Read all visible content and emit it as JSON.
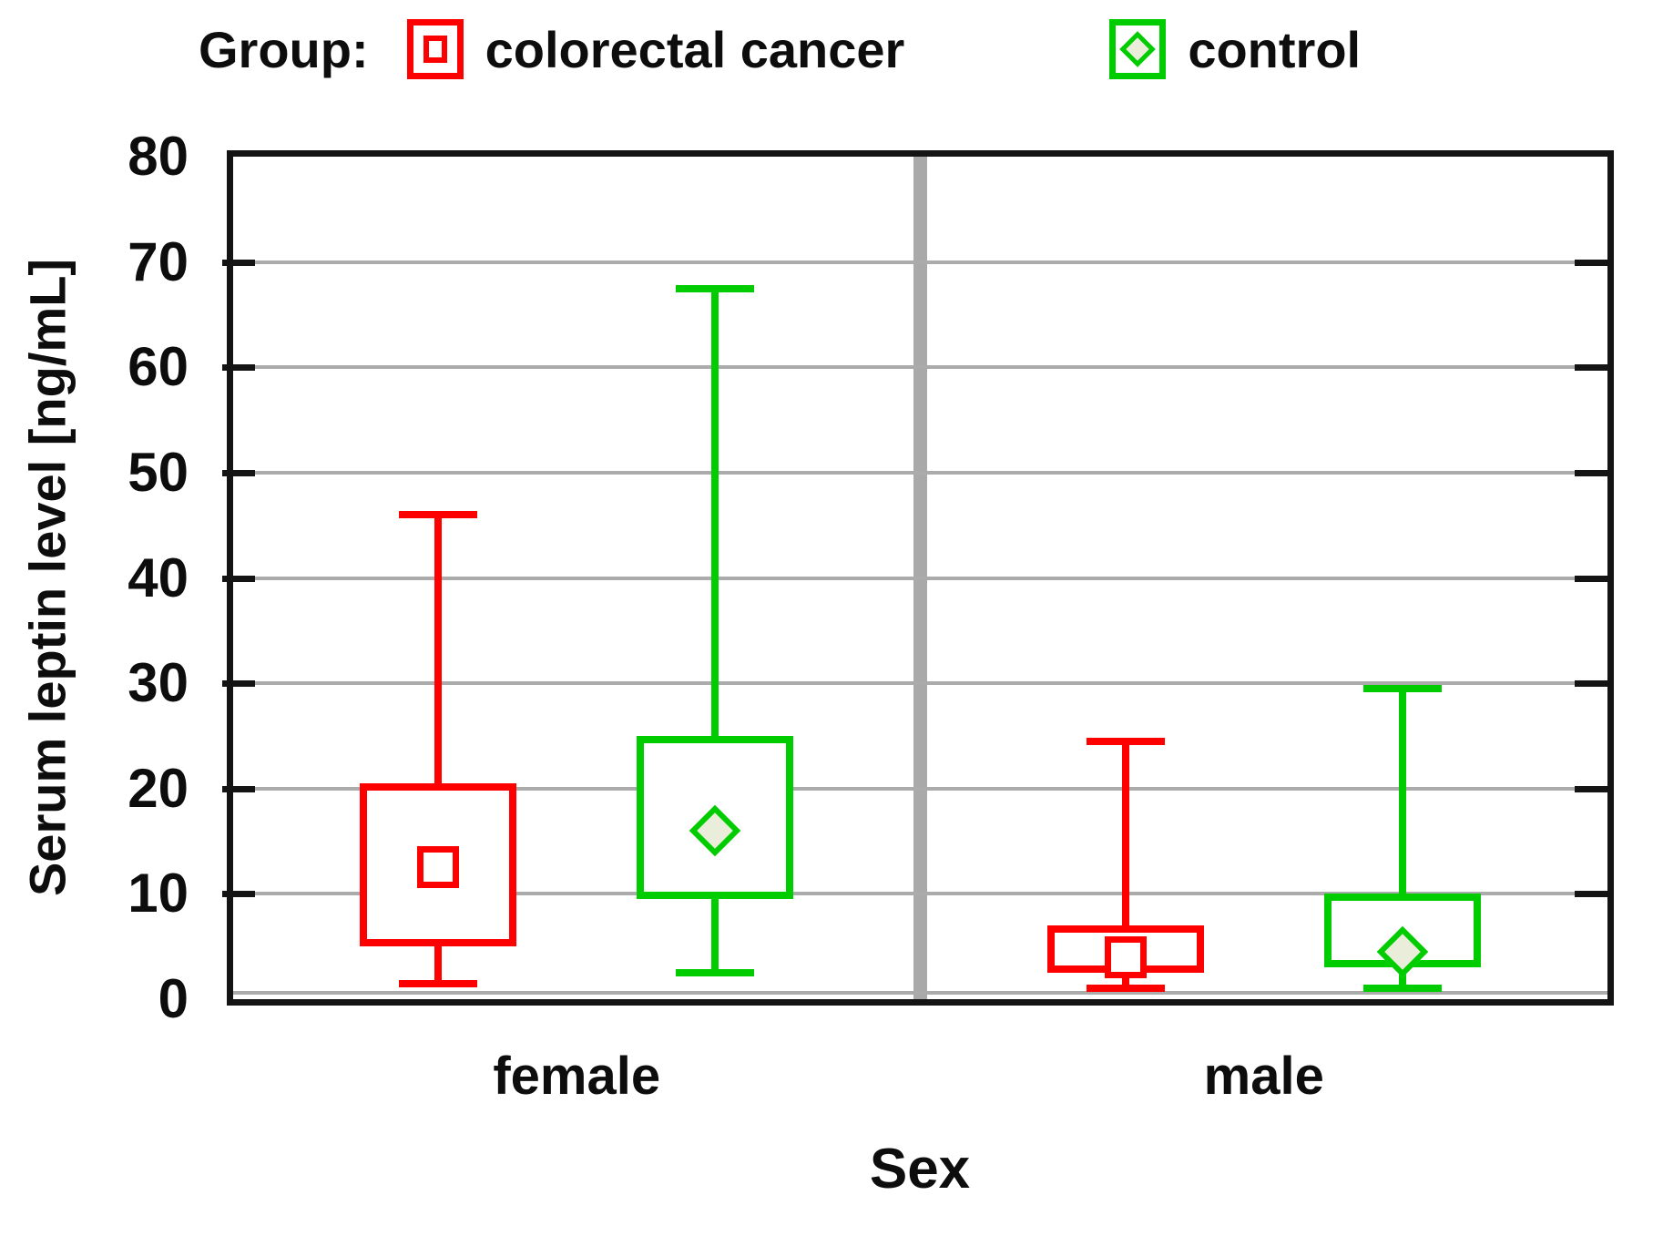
{
  "style": {
    "background": "#ffffff",
    "text": "#0d0d0d",
    "border": "#141414",
    "gridline": "#ababab",
    "separator": "#a9a9a9",
    "box_fill": "#ffffff"
  },
  "chart_data": {
    "type": "boxplot",
    "legend_title": "Group:",
    "legend_position": "top",
    "grid": "horizontal",
    "categories": [
      "female",
      "male"
    ],
    "xlabel": "Sex",
    "ylabel": "Serum leptin level [ng/mL]",
    "ylim": [
      0,
      80
    ],
    "ytick_step": 10,
    "yticks": [
      0,
      10,
      20,
      30,
      40,
      50,
      60,
      70,
      80
    ],
    "series": [
      {
        "name": "colorectal cancer",
        "color": "#ff0000",
        "marker": "open-square",
        "marker_fill": "#ffffff",
        "boxes": [
          {
            "category": "female",
            "whisker_low": 1.5,
            "q1": 5,
            "center": 12.5,
            "q3": 20.5,
            "whisker_high": 46
          },
          {
            "category": "male",
            "whisker_low": 1,
            "q1": 2.5,
            "center": 4,
            "q3": 7,
            "whisker_high": 24.5
          }
        ]
      },
      {
        "name": "control",
        "color": "#00cc00",
        "marker": "filled-diamond",
        "marker_fill": "#e9edd9",
        "boxes": [
          {
            "category": "female",
            "whisker_low": 2.5,
            "q1": 9.5,
            "center": 16,
            "q3": 25,
            "whisker_high": 67.5
          },
          {
            "category": "male",
            "whisker_low": 1,
            "q1": 3,
            "center": 4.5,
            "q3": 10,
            "whisker_high": 29.5
          }
        ]
      }
    ]
  }
}
